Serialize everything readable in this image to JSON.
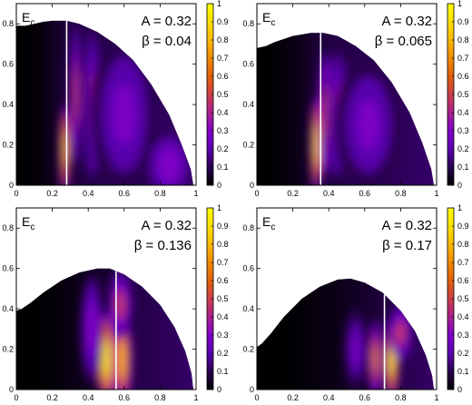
{
  "chart_data": [
    {
      "type": "heatmap",
      "panel_label": "E",
      "panel_label_sub": "c",
      "param_A": "A = 0.32",
      "param_beta": "β = 0.04",
      "beta": 0.04,
      "xlim": [
        0,
        1
      ],
      "ylim": [
        0,
        0.9
      ],
      "clim": [
        0,
        1
      ],
      "xticks": [
        "0",
        "0.2",
        "0.4",
        "0.6",
        "0.8",
        "1"
      ],
      "yticks": [
        "0",
        "0.2",
        "0.4",
        "0.6",
        "0.8"
      ],
      "cbar_ticks": [
        "0",
        "0.1",
        "0.2",
        "0.3",
        "0.4",
        "0.5",
        "0.6",
        "0.7",
        "0.8",
        "0.9",
        "1"
      ],
      "boundary": [
        [
          0,
          0.79
        ],
        [
          0.05,
          0.79
        ],
        [
          0.1,
          0.8
        ],
        [
          0.15,
          0.81
        ],
        [
          0.2,
          0.815
        ],
        [
          0.28,
          0.815
        ],
        [
          0.35,
          0.8
        ],
        [
          0.45,
          0.76
        ],
        [
          0.55,
          0.7
        ],
        [
          0.65,
          0.62
        ],
        [
          0.75,
          0.5
        ],
        [
          0.85,
          0.35
        ],
        [
          0.92,
          0.2
        ],
        [
          0.97,
          0.08
        ],
        [
          0.985,
          0
        ]
      ],
      "marker_x": 0.28,
      "hotspots": [
        {
          "x": 0.27,
          "y": 0.18,
          "rx": 0.018,
          "ry": 0.16,
          "intensity": 0.88
        },
        {
          "x": 0.33,
          "y": 0.45,
          "rx": 0.02,
          "ry": 0.25,
          "intensity": 0.45
        },
        {
          "x": 0.42,
          "y": 0.4,
          "rx": 0.03,
          "ry": 0.3,
          "intensity": 0.35
        },
        {
          "x": 0.6,
          "y": 0.35,
          "rx": 0.12,
          "ry": 0.3,
          "intensity": 0.28
        },
        {
          "x": 0.85,
          "y": 0.1,
          "rx": 0.08,
          "ry": 0.12,
          "intensity": 0.3
        }
      ]
    },
    {
      "type": "heatmap",
      "panel_label": "E",
      "panel_label_sub": "c",
      "param_A": "A = 0.32",
      "param_beta": "β = 0.065",
      "beta": 0.065,
      "xlim": [
        0,
        1
      ],
      "ylim": [
        0,
        0.9
      ],
      "clim": [
        0,
        1
      ],
      "xticks": [
        "0",
        "0.2",
        "0.4",
        "0.6",
        "0.8",
        "1"
      ],
      "yticks": [
        "0",
        "0.2",
        "0.4",
        "0.6",
        "0.8"
      ],
      "cbar_ticks": [
        "0",
        "0.1",
        "0.2",
        "0.3",
        "0.4",
        "0.5",
        "0.6",
        "0.7",
        "0.8",
        "0.9",
        "1"
      ],
      "boundary": [
        [
          0,
          0.68
        ],
        [
          0.05,
          0.69
        ],
        [
          0.1,
          0.71
        ],
        [
          0.2,
          0.74
        ],
        [
          0.3,
          0.755
        ],
        [
          0.37,
          0.755
        ],
        [
          0.45,
          0.74
        ],
        [
          0.55,
          0.69
        ],
        [
          0.65,
          0.62
        ],
        [
          0.75,
          0.51
        ],
        [
          0.85,
          0.36
        ],
        [
          0.92,
          0.21
        ],
        [
          0.97,
          0.08
        ],
        [
          0.985,
          0
        ]
      ],
      "marker_x": 0.355,
      "hotspots": [
        {
          "x": 0.33,
          "y": 0.2,
          "rx": 0.02,
          "ry": 0.17,
          "intensity": 0.9
        },
        {
          "x": 0.38,
          "y": 0.35,
          "rx": 0.025,
          "ry": 0.22,
          "intensity": 0.5
        },
        {
          "x": 0.45,
          "y": 0.35,
          "rx": 0.04,
          "ry": 0.25,
          "intensity": 0.35
        },
        {
          "x": 0.62,
          "y": 0.3,
          "rx": 0.12,
          "ry": 0.25,
          "intensity": 0.25
        }
      ]
    },
    {
      "type": "heatmap",
      "panel_label": "E",
      "panel_label_sub": "c",
      "param_A": "A = 0.32",
      "param_beta": "β = 0.136",
      "beta": 0.136,
      "xlim": [
        0,
        1
      ],
      "ylim": [
        0,
        0.9
      ],
      "clim": [
        0,
        1
      ],
      "xticks": [
        "0",
        "0.2",
        "0.4",
        "0.6",
        "0.8",
        "1"
      ],
      "yticks": [
        "0",
        "0.2",
        "0.4",
        "0.6",
        "0.8"
      ],
      "cbar_ticks": [
        "0",
        "0.1",
        "0.2",
        "0.3",
        "0.4",
        "0.5",
        "0.6",
        "0.7",
        "0.8",
        "0.9",
        "1"
      ],
      "boundary": [
        [
          0,
          0.39
        ],
        [
          0.03,
          0.4
        ],
        [
          0.08,
          0.43
        ],
        [
          0.15,
          0.48
        ],
        [
          0.25,
          0.54
        ],
        [
          0.35,
          0.58
        ],
        [
          0.45,
          0.6
        ],
        [
          0.52,
          0.6
        ],
        [
          0.6,
          0.57
        ],
        [
          0.7,
          0.51
        ],
        [
          0.8,
          0.42
        ],
        [
          0.88,
          0.31
        ],
        [
          0.94,
          0.19
        ],
        [
          0.975,
          0.08
        ],
        [
          0.985,
          0
        ]
      ],
      "marker_x": 0.555,
      "hotspots": [
        {
          "x": 0.5,
          "y": 0.15,
          "rx": 0.03,
          "ry": 0.17,
          "intensity": 0.95
        },
        {
          "x": 0.59,
          "y": 0.15,
          "rx": 0.035,
          "ry": 0.17,
          "intensity": 0.8
        },
        {
          "x": 0.58,
          "y": 0.42,
          "rx": 0.04,
          "ry": 0.12,
          "intensity": 0.45
        },
        {
          "x": 0.42,
          "y": 0.3,
          "rx": 0.04,
          "ry": 0.2,
          "intensity": 0.3
        }
      ]
    },
    {
      "type": "heatmap",
      "panel_label": "E",
      "panel_label_sub": "c",
      "param_A": "A = 0.32",
      "param_beta": "β = 0.17",
      "beta": 0.17,
      "xlim": [
        0,
        1
      ],
      "ylim": [
        0,
        0.9
      ],
      "clim": [
        0,
        1
      ],
      "xticks": [
        "0",
        "0.2",
        "0.4",
        "0.6",
        "0.8",
        "1"
      ],
      "yticks": [
        "0",
        "0.2",
        "0.4",
        "0.6",
        "0.8"
      ],
      "cbar_ticks": [
        "0",
        "0.1",
        "0.2",
        "0.3",
        "0.4",
        "0.5",
        "0.6",
        "0.7",
        "0.8",
        "0.9",
        "1"
      ],
      "boundary": [
        [
          0,
          0.21
        ],
        [
          0.03,
          0.23
        ],
        [
          0.08,
          0.28
        ],
        [
          0.15,
          0.36
        ],
        [
          0.25,
          0.45
        ],
        [
          0.35,
          0.51
        ],
        [
          0.45,
          0.545
        ],
        [
          0.52,
          0.55
        ],
        [
          0.6,
          0.53
        ],
        [
          0.7,
          0.48
        ],
        [
          0.8,
          0.39
        ],
        [
          0.88,
          0.29
        ],
        [
          0.94,
          0.17
        ],
        [
          0.975,
          0.07
        ],
        [
          0.985,
          0
        ]
      ],
      "marker_x": 0.71,
      "hotspots": [
        {
          "x": 0.75,
          "y": 0.15,
          "rx": 0.025,
          "ry": 0.15,
          "intensity": 0.95
        },
        {
          "x": 0.66,
          "y": 0.15,
          "rx": 0.025,
          "ry": 0.14,
          "intensity": 0.65
        },
        {
          "x": 0.8,
          "y": 0.28,
          "rx": 0.04,
          "ry": 0.1,
          "intensity": 0.45
        },
        {
          "x": 0.55,
          "y": 0.2,
          "rx": 0.04,
          "ry": 0.15,
          "intensity": 0.28
        }
      ]
    }
  ],
  "colors": {
    "colormap": [
      "#000000",
      "#2a0050",
      "#5a00b0",
      "#8000c8",
      "#a8208e",
      "#cc3f4a",
      "#e0600a",
      "#f08a00",
      "#f8b800",
      "#fde000",
      "#ffff00"
    ],
    "marker_line": "#ffffff",
    "frame": "#000000"
  }
}
